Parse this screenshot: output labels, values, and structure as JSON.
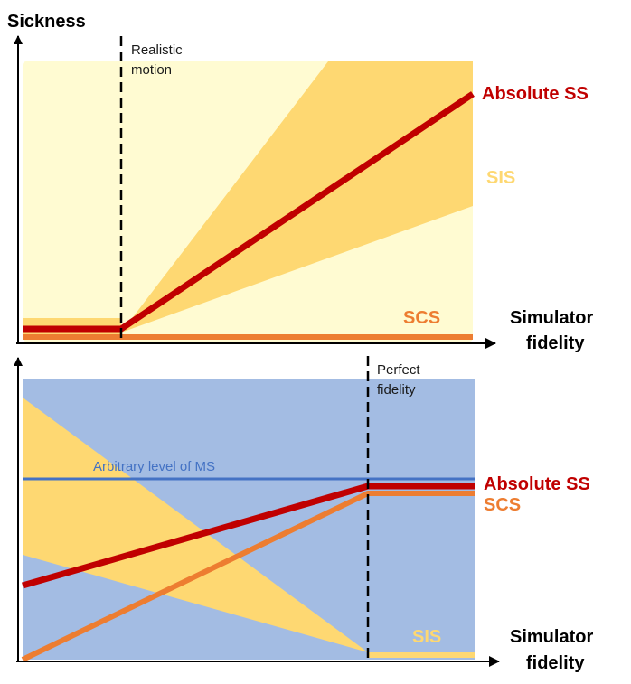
{
  "colors": {
    "light_yellow": "#FFFBD2",
    "sis_band": "#FED872",
    "light_blue": "#A3BCE3",
    "absolute_ss": "#C00000",
    "scs": "#ED7D31",
    "sis_text": "#FED872",
    "ms_line": "#4472C4",
    "axis": "#000000"
  },
  "top_panel": {
    "y_axis_title": "Sickness",
    "x_axis_title_line1": "Simulator",
    "x_axis_title_line2": "fidelity",
    "marker_label_line1": "Realistic",
    "marker_label_line2": "motion",
    "absolute_ss_label": "Absolute SS",
    "sis_label": "SIS",
    "scs_label": "SCS"
  },
  "bottom_panel": {
    "x_axis_title_line1": "Simulator",
    "x_axis_title_line2": "fidelity",
    "marker_label_line1": "Perfect",
    "marker_label_line2": "fidelity",
    "ms_level_label": "Arbitrary level of MS",
    "absolute_ss_label": "Absolute SS",
    "scs_label": "SCS",
    "sis_label": "SIS"
  }
}
